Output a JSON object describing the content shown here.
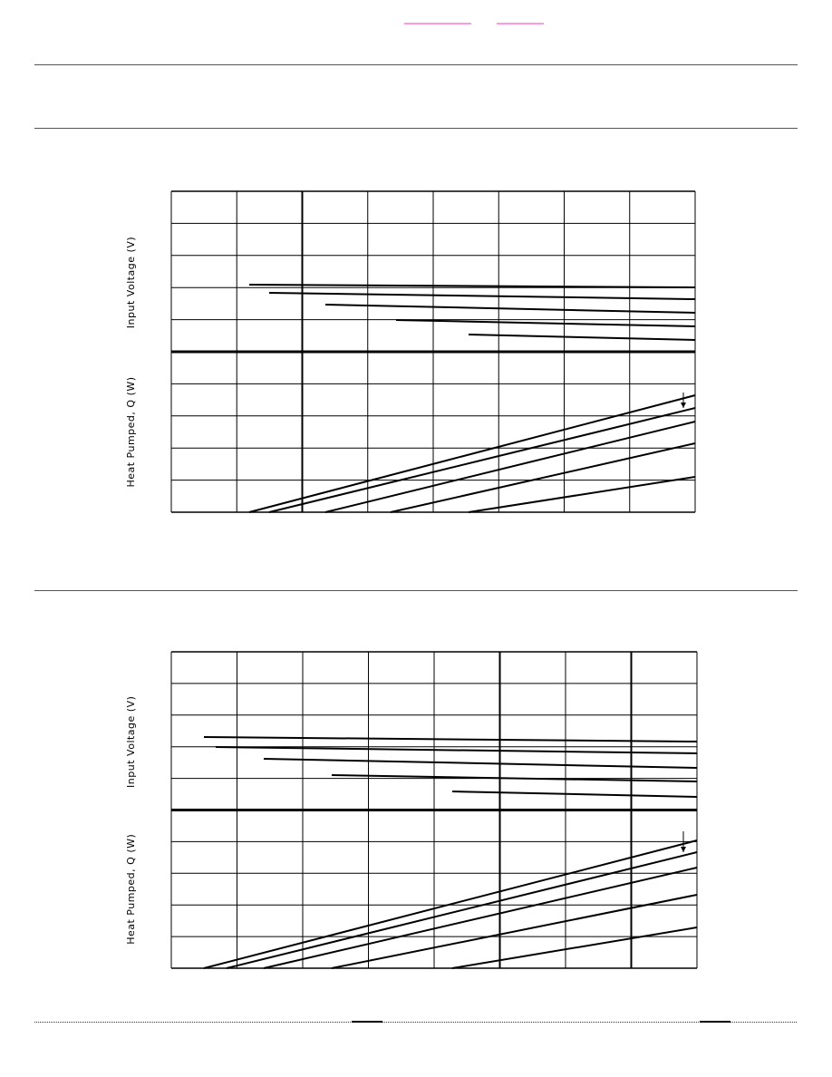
{
  "charts": [
    {
      "y_label_top": "Input Voltage (V)",
      "y_label_bottom": "Heat Pumped, Q (W)"
    },
    {
      "y_label_top": "Input Voltage (V)",
      "y_label_bottom": "Heat Pumped, Q (W)"
    }
  ]
}
